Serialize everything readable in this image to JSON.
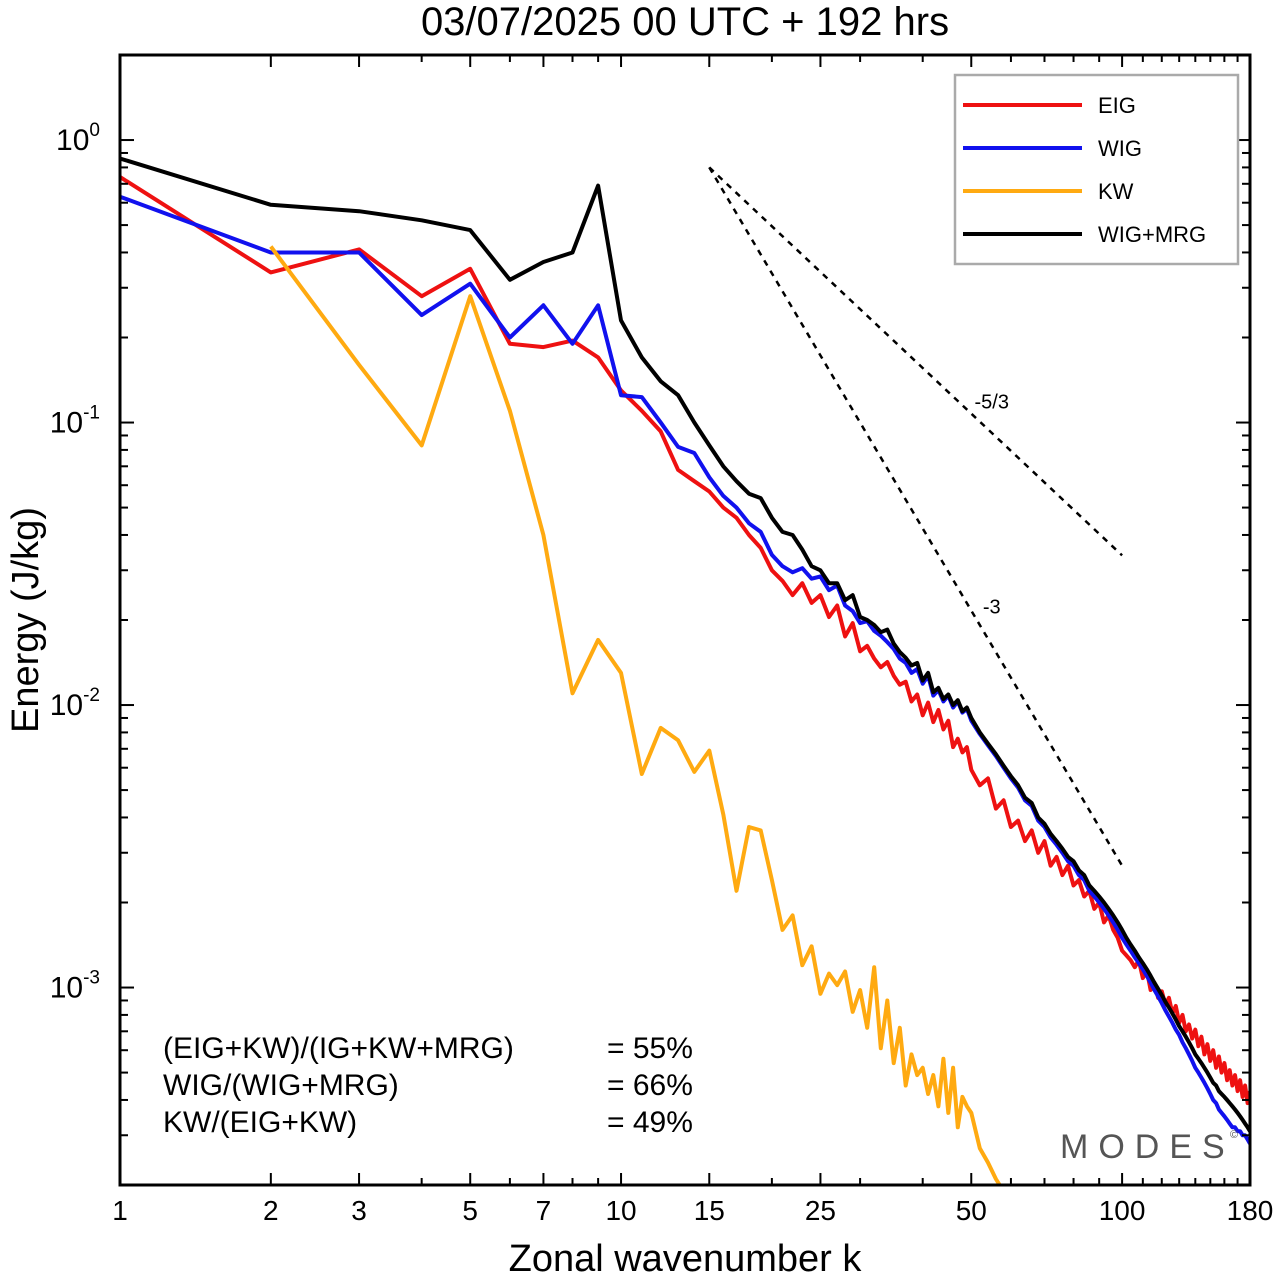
{
  "chart_data": {
    "type": "line",
    "title": "03/07/2025  00 UTC  + 192 hrs",
    "xlabel": "Zonal wavenumber k",
    "ylabel": "Energy (J/kg)",
    "xscale": "log",
    "yscale": "log",
    "xlim": [
      1,
      180
    ],
    "ylim": [
      0.0002,
      2.0
    ],
    "xticks": [
      {
        "value": 1,
        "label": "1"
      },
      {
        "value": 2,
        "label": "2"
      },
      {
        "value": 3,
        "label": "3"
      },
      {
        "value": 5,
        "label": "5"
      },
      {
        "value": 7,
        "label": "7"
      },
      {
        "value": 10,
        "label": "10"
      },
      {
        "value": 15,
        "label": "15"
      },
      {
        "value": 25,
        "label": "25"
      },
      {
        "value": 50,
        "label": "50"
      },
      {
        "value": 100,
        "label": "100"
      },
      {
        "value": 180,
        "label": "180"
      }
    ],
    "yticks": [
      {
        "value": 1,
        "base": "10",
        "exp": "0"
      },
      {
        "value": 0.1,
        "base": "10",
        "exp": "-1"
      },
      {
        "value": 0.01,
        "base": "10",
        "exp": "-2"
      },
      {
        "value": 0.001,
        "base": "10",
        "exp": "-3"
      }
    ],
    "legend_position": "top-right",
    "grid": false,
    "series": [
      {
        "name": "EIG",
        "color": "#ee1111",
        "x": [
          1,
          2,
          3,
          4,
          5,
          6,
          7,
          8,
          9,
          10,
          11,
          12,
          13,
          14,
          15,
          16,
          17,
          18,
          19,
          20,
          21,
          22,
          23,
          24,
          25,
          26,
          27,
          28,
          29,
          30,
          31,
          32,
          33,
          34,
          35,
          36,
          37,
          38,
          39,
          40,
          41,
          42,
          43,
          44,
          45,
          46,
          47,
          48,
          49,
          50,
          52,
          54,
          56,
          58,
          60,
          62,
          64,
          66,
          68,
          70,
          72,
          74,
          76,
          78,
          80,
          82,
          84,
          86,
          88,
          90,
          92,
          94,
          96,
          98,
          100,
          102,
          104,
          106,
          108,
          110,
          112,
          114,
          116,
          118,
          120,
          122,
          124,
          126,
          128,
          130,
          132,
          134,
          136,
          138,
          140,
          142,
          144,
          146,
          148,
          150,
          152,
          154,
          156,
          158,
          160,
          162,
          164,
          166,
          168,
          170,
          172,
          174,
          176,
          178,
          180
        ],
        "y": [
          0.74,
          0.34,
          0.41,
          0.28,
          0.35,
          0.19,
          0.185,
          0.195,
          0.17,
          0.13,
          0.11,
          0.093,
          0.068,
          0.062,
          0.057,
          0.05,
          0.046,
          0.04,
          0.036,
          0.03,
          0.0275,
          0.0245,
          0.027,
          0.023,
          0.0245,
          0.0205,
          0.0225,
          0.0175,
          0.0195,
          0.0155,
          0.0162,
          0.0146,
          0.0136,
          0.0142,
          0.0127,
          0.0118,
          0.0121,
          0.0103,
          0.0109,
          0.0092,
          0.0102,
          0.0087,
          0.0096,
          0.0082,
          0.0088,
          0.0071,
          0.0076,
          0.0068,
          0.0071,
          0.0059,
          0.0052,
          0.0055,
          0.0043,
          0.0046,
          0.0037,
          0.0039,
          0.0033,
          0.0036,
          0.003,
          0.0033,
          0.0027,
          0.0029,
          0.0025,
          0.0027,
          0.0023,
          0.0024,
          0.0021,
          0.0022,
          0.0019,
          0.002,
          0.0017,
          0.0018,
          0.0016,
          0.0015,
          0.00135,
          0.0013,
          0.00125,
          0.00118,
          0.00125,
          0.00108,
          0.00115,
          0.00098,
          0.00104,
          0.00092,
          0.00097,
          0.00087,
          0.00092,
          0.00081,
          0.00086,
          0.00075,
          0.0008,
          0.0007,
          0.00074,
          0.00066,
          0.00071,
          0.00062,
          0.00067,
          0.00058,
          0.00063,
          0.00055,
          0.0006,
          0.00052,
          0.00057,
          0.0005,
          0.00054,
          0.00047,
          0.00051,
          0.00045,
          0.00049,
          0.00043,
          0.00047,
          0.00041,
          0.00045,
          0.00039,
          0.00043
        ]
      },
      {
        "name": "WIG",
        "color": "#1111ee",
        "x": [
          1,
          2,
          3,
          4,
          5,
          6,
          7,
          8,
          9,
          10,
          11,
          12,
          13,
          14,
          15,
          16,
          17,
          18,
          19,
          20,
          21,
          22,
          23,
          24,
          25,
          26,
          27,
          28,
          29,
          30,
          31,
          32,
          33,
          34,
          35,
          36,
          37,
          38,
          39,
          40,
          41,
          42,
          43,
          44,
          45,
          46,
          47,
          48,
          49,
          50,
          52,
          54,
          56,
          58,
          60,
          62,
          64,
          66,
          68,
          70,
          72,
          74,
          76,
          78,
          80,
          82,
          84,
          86,
          88,
          90,
          92,
          94,
          96,
          98,
          100,
          102,
          104,
          106,
          108,
          110,
          112,
          114,
          116,
          118,
          120,
          122,
          124,
          126,
          128,
          130,
          132,
          134,
          136,
          138,
          140,
          142,
          144,
          146,
          148,
          150,
          152,
          154,
          156,
          158,
          160,
          162,
          164,
          166,
          168,
          170,
          172,
          174,
          176,
          178,
          180
        ],
        "y": [
          0.63,
          0.4,
          0.4,
          0.24,
          0.31,
          0.2,
          0.26,
          0.19,
          0.26,
          0.125,
          0.123,
          0.1,
          0.082,
          0.078,
          0.064,
          0.055,
          0.05,
          0.044,
          0.041,
          0.034,
          0.031,
          0.0295,
          0.0305,
          0.028,
          0.0285,
          0.0255,
          0.0265,
          0.0225,
          0.0215,
          0.0195,
          0.0198,
          0.0183,
          0.0176,
          0.0167,
          0.0158,
          0.0146,
          0.0141,
          0.013,
          0.0134,
          0.0119,
          0.0127,
          0.0108,
          0.0113,
          0.0103,
          0.0108,
          0.0098,
          0.0103,
          0.0094,
          0.0097,
          0.0088,
          0.0079,
          0.0072,
          0.0066,
          0.006,
          0.0055,
          0.0051,
          0.0046,
          0.0044,
          0.0039,
          0.0037,
          0.0034,
          0.0032,
          0.003,
          0.0028,
          0.0027,
          0.0025,
          0.0024,
          0.0022,
          0.0021,
          0.002,
          0.0019,
          0.0018,
          0.0017,
          0.0016,
          0.0015,
          0.00142,
          0.00135,
          0.00128,
          0.00122,
          0.00116,
          0.0011,
          0.00104,
          0.00098,
          0.00093,
          0.00088,
          0.00083,
          0.00079,
          0.00075,
          0.00071,
          0.00068,
          0.00064,
          0.00061,
          0.00058,
          0.00055,
          0.00052,
          0.0005,
          0.00048,
          0.00046,
          0.00044,
          0.00042,
          0.0004,
          0.00039,
          0.00037,
          0.00036,
          0.00035,
          0.00034,
          0.00033,
          0.00032,
          0.00032,
          0.00031,
          0.00031,
          0.0003,
          0.0003,
          0.00029,
          0.00028
        ]
      },
      {
        "name": "KW",
        "color": "#ffaa11",
        "x": [
          2,
          3,
          4,
          5,
          6,
          7,
          8,
          9,
          10,
          11,
          12,
          13,
          14,
          15,
          16,
          17,
          18,
          19,
          20,
          21,
          22,
          23,
          24,
          25,
          26,
          27,
          28,
          29,
          30,
          31,
          32,
          33,
          34,
          35,
          36,
          37,
          38,
          39,
          40,
          41,
          42,
          43,
          44,
          45,
          46,
          47,
          48,
          49,
          50,
          52,
          54,
          56,
          58,
          60
        ],
        "y": [
          0.42,
          0.16,
          0.083,
          0.28,
          0.11,
          0.04,
          0.011,
          0.017,
          0.013,
          0.0057,
          0.0083,
          0.0075,
          0.0058,
          0.0069,
          0.0041,
          0.0022,
          0.0037,
          0.0036,
          0.0024,
          0.0016,
          0.0018,
          0.0012,
          0.0014,
          0.00095,
          0.00112,
          0.00102,
          0.00114,
          0.00082,
          0.00098,
          0.00072,
          0.00118,
          0.00061,
          0.0009,
          0.00054,
          0.00072,
          0.00045,
          0.00058,
          0.00049,
          0.00052,
          0.00042,
          0.00049,
          0.00038,
          0.00056,
          0.00036,
          0.00052,
          0.00032,
          0.00041,
          0.00038,
          0.00036,
          0.00027,
          0.00024,
          0.00021,
          0.00019,
          0.00018
        ]
      },
      {
        "name": "WIG+MRG",
        "color": "#000000",
        "x": [
          1,
          2,
          3,
          4,
          5,
          6,
          7,
          8,
          9,
          10,
          11,
          12,
          13,
          14,
          15,
          16,
          17,
          18,
          19,
          20,
          21,
          22,
          23,
          24,
          25,
          26,
          27,
          28,
          29,
          30,
          31,
          32,
          33,
          34,
          35,
          36,
          37,
          38,
          39,
          40,
          41,
          42,
          43,
          44,
          45,
          46,
          47,
          48,
          49,
          50,
          52,
          54,
          56,
          58,
          60,
          62,
          64,
          66,
          68,
          70,
          72,
          74,
          76,
          78,
          80,
          82,
          84,
          86,
          88,
          90,
          92,
          94,
          96,
          98,
          100,
          102,
          104,
          106,
          108,
          110,
          112,
          114,
          116,
          118,
          120,
          122,
          124,
          126,
          128,
          130,
          132,
          134,
          136,
          138,
          140,
          142,
          144,
          146,
          148,
          150,
          152,
          154,
          156,
          158,
          160,
          162,
          164,
          166,
          168,
          170,
          172,
          174,
          176,
          178,
          180
        ],
        "y": [
          0.86,
          0.59,
          0.56,
          0.52,
          0.48,
          0.32,
          0.37,
          0.4,
          0.69,
          0.23,
          0.17,
          0.14,
          0.125,
          0.1,
          0.083,
          0.07,
          0.062,
          0.056,
          0.054,
          0.046,
          0.041,
          0.04,
          0.0355,
          0.031,
          0.03,
          0.027,
          0.027,
          0.0235,
          0.0245,
          0.0205,
          0.02,
          0.0192,
          0.0181,
          0.0185,
          0.0165,
          0.0154,
          0.0147,
          0.0138,
          0.0141,
          0.0122,
          0.013,
          0.0111,
          0.0115,
          0.0105,
          0.0109,
          0.01,
          0.0104,
          0.0095,
          0.0098,
          0.009,
          0.008,
          0.0073,
          0.0067,
          0.0061,
          0.0056,
          0.0052,
          0.0047,
          0.0045,
          0.004,
          0.0038,
          0.0035,
          0.0033,
          0.0031,
          0.0029,
          0.0028,
          0.0026,
          0.0025,
          0.0023,
          0.0022,
          0.0021,
          0.002,
          0.0019,
          0.0018,
          0.0017,
          0.0016,
          0.0015,
          0.00142,
          0.00135,
          0.00128,
          0.00122,
          0.00116,
          0.0011,
          0.00104,
          0.00099,
          0.00094,
          0.00089,
          0.00085,
          0.00081,
          0.00077,
          0.00073,
          0.0007,
          0.00067,
          0.00064,
          0.00061,
          0.00058,
          0.00056,
          0.00054,
          0.00052,
          0.0005,
          0.00048,
          0.00046,
          0.00045,
          0.00043,
          0.00042,
          0.00041,
          0.0004,
          0.00039,
          0.00038,
          0.00037,
          0.00036,
          0.00035,
          0.00034,
          0.00033,
          0.00032,
          0.00031
        ]
      }
    ],
    "reference_slopes": [
      {
        "label": "-5/3",
        "slope": -1.6667,
        "x_start": 15,
        "y_start": 0.8,
        "x_end": 100
      },
      {
        "label": "-3",
        "slope": -3,
        "x_start": 15,
        "y_start": 0.8,
        "x_end": 100
      }
    ],
    "annotations": [
      {
        "text": "(EIG+KW)/(IG+KW+MRG)",
        "value": "= 55%"
      },
      {
        "text": "WIG/(WIG+MRG)",
        "value": "= 66%"
      },
      {
        "text": "KW/(EIG+KW)",
        "value": "= 49%"
      }
    ]
  },
  "watermark": {
    "text": "MODES",
    "mark": "©"
  }
}
